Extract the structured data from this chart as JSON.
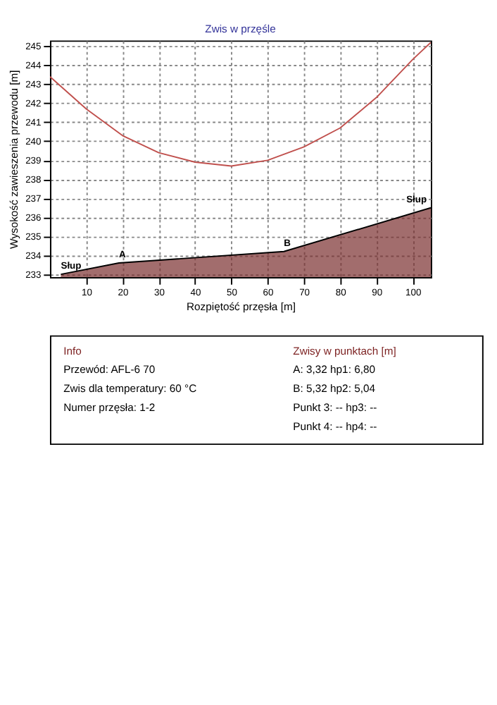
{
  "chart_data": {
    "type": "line",
    "title": "Zwis w przęśle",
    "xlabel": "Rozpiętość przęsła [m]",
    "ylabel": "Wysokość zawieszenia przewodu [m]",
    "xlim": [
      0,
      105
    ],
    "ylim": [
      232.85,
      245.3
    ],
    "xticks": [
      10,
      20,
      30,
      40,
      50,
      60,
      70,
      80,
      90,
      100
    ],
    "yticks": [
      233,
      234,
      235,
      236,
      237,
      238,
      239,
      240,
      241,
      242,
      243,
      244,
      245
    ],
    "grid": true,
    "marker": "none",
    "line_style": "solid",
    "series": [
      {
        "color": "#c0504d",
        "x": [
          0,
          10,
          20,
          30,
          40,
          50,
          60,
          70,
          80,
          90,
          100,
          105
        ],
        "values": [
          243.4,
          241.7,
          240.3,
          239.4,
          238.9,
          238.7,
          239.0,
          239.7,
          240.7,
          242.3,
          244.3,
          245.2
        ]
      },
      {
        "type": "area",
        "color": "#7b2f2f",
        "x": [
          3,
          19,
          64.5,
          105
        ],
        "values": [
          233.0,
          233.6,
          234.2,
          236.5
        ]
      }
    ],
    "annotations": [
      {
        "text": "Słup",
        "x": 3,
        "y": 233.0
      },
      {
        "text": "A",
        "x": 19,
        "y": 233.6
      },
      {
        "text": "B",
        "x": 64.5,
        "y": 234.2
      },
      {
        "text": "Słup",
        "x": 105,
        "y": 236.5
      },
      "Info",
      "Przewód:  AFL-6 70",
      "Zwis dla temperatury:  60 °C",
      "Numer przęsła:  1-2",
      "Zwisy w punktach [m]",
      "A:  3,32   hp1:  6,80",
      "B:  5,32   hp2:  5,04",
      "Punkt 3:  --   hp3:  --",
      "Punkt 4:  --   hp4:  --"
    ]
  }
}
